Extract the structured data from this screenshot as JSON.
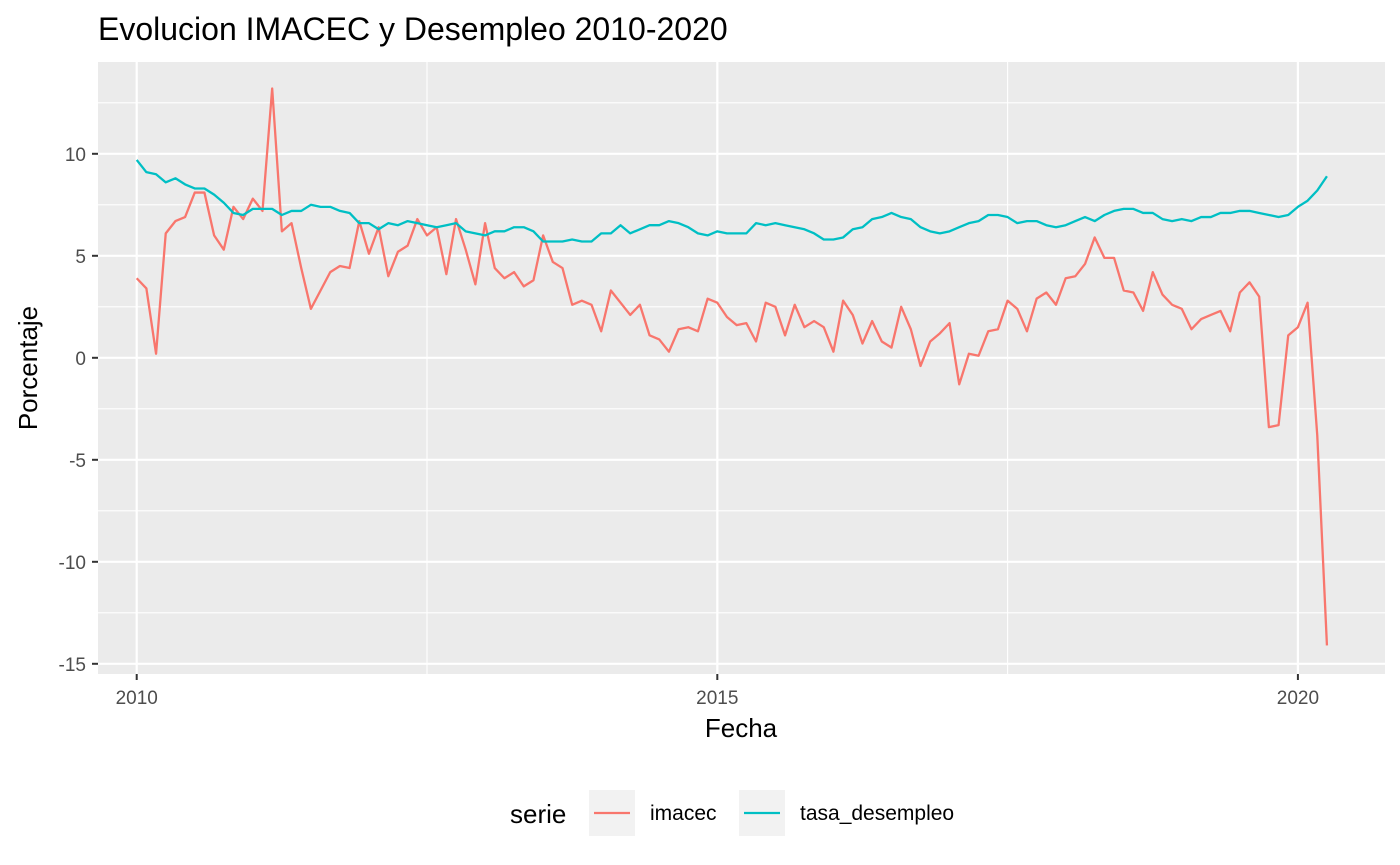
{
  "chart_data": {
    "type": "line",
    "title": "Evolucion IMACEC y Desempleo 2010-2020",
    "xlabel": "Fecha",
    "ylabel": "Porcentaje",
    "x_ticks": [
      "2010",
      "2015",
      "2020"
    ],
    "y_ticks": [
      "-15",
      "-10",
      "-5",
      "0",
      "5",
      "10"
    ],
    "xlim": [
      "2009-09",
      "2020-10"
    ],
    "ylim": [
      -15.5,
      14.5
    ],
    "grid": true,
    "legend": {
      "title": "serie",
      "position": "bottom"
    },
    "series": [
      {
        "name": "imacec",
        "color": "#F8766D",
        "start": "2010-01",
        "frequency": "monthly",
        "values": [
          3.9,
          3.4,
          0.2,
          6.1,
          6.7,
          6.9,
          8.1,
          8.1,
          6.0,
          5.3,
          7.4,
          6.8,
          7.8,
          7.2,
          13.2,
          6.2,
          6.6,
          4.4,
          2.4,
          3.3,
          4.2,
          4.5,
          4.4,
          6.7,
          5.1,
          6.4,
          4.0,
          5.2,
          5.5,
          6.8,
          6.0,
          6.4,
          4.1,
          6.8,
          5.3,
          3.6,
          6.6,
          4.4,
          3.9,
          4.2,
          3.5,
          3.8,
          6.0,
          4.7,
          4.4,
          2.6,
          2.8,
          2.6,
          1.3,
          3.3,
          2.7,
          2.1,
          2.6,
          1.1,
          0.9,
          0.3,
          1.4,
          1.5,
          1.3,
          2.9,
          2.7,
          2.0,
          1.6,
          1.7,
          0.8,
          2.7,
          2.5,
          1.1,
          2.6,
          1.5,
          1.8,
          1.5,
          0.3,
          2.8,
          2.1,
          0.7,
          1.8,
          0.8,
          0.5,
          2.5,
          1.4,
          -0.4,
          0.8,
          1.2,
          1.7,
          -1.3,
          0.2,
          0.1,
          1.3,
          1.4,
          2.8,
          2.4,
          1.3,
          2.9,
          3.2,
          2.6,
          3.9,
          4.0,
          4.6,
          5.9,
          4.9,
          4.9,
          3.3,
          3.2,
          2.3,
          4.2,
          3.1,
          2.6,
          2.4,
          1.4,
          1.9,
          2.1,
          2.3,
          1.3,
          3.2,
          3.7,
          3.0,
          -3.4,
          -3.3,
          1.1,
          1.5,
          2.7,
          -3.8,
          -14.1
        ]
      },
      {
        "name": "tasa_desempleo",
        "color": "#00BFC4",
        "start": "2010-01",
        "frequency": "monthly",
        "values": [
          9.7,
          9.1,
          9.0,
          8.6,
          8.8,
          8.5,
          8.3,
          8.3,
          8.0,
          7.6,
          7.1,
          7.0,
          7.3,
          7.3,
          7.3,
          7.0,
          7.2,
          7.2,
          7.5,
          7.4,
          7.4,
          7.2,
          7.1,
          6.6,
          6.6,
          6.3,
          6.6,
          6.5,
          6.7,
          6.6,
          6.5,
          6.4,
          6.5,
          6.6,
          6.2,
          6.1,
          6.0,
          6.2,
          6.2,
          6.4,
          6.4,
          6.2,
          5.7,
          5.7,
          5.7,
          5.8,
          5.7,
          5.7,
          6.1,
          6.1,
          6.5,
          6.1,
          6.3,
          6.5,
          6.5,
          6.7,
          6.6,
          6.4,
          6.1,
          6.0,
          6.2,
          6.1,
          6.1,
          6.1,
          6.6,
          6.5,
          6.6,
          6.5,
          6.4,
          6.3,
          6.1,
          5.8,
          5.8,
          5.9,
          6.3,
          6.4,
          6.8,
          6.9,
          7.1,
          6.9,
          6.8,
          6.4,
          6.2,
          6.1,
          6.2,
          6.4,
          6.6,
          6.7,
          7.0,
          7.0,
          6.9,
          6.6,
          6.7,
          6.7,
          6.5,
          6.4,
          6.5,
          6.7,
          6.9,
          6.7,
          7.0,
          7.2,
          7.3,
          7.3,
          7.1,
          7.1,
          6.8,
          6.7,
          6.8,
          6.7,
          6.9,
          6.9,
          7.1,
          7.1,
          7.2,
          7.2,
          7.1,
          7.0,
          6.9,
          7.0,
          7.4,
          7.7,
          8.2,
          8.9
        ]
      }
    ]
  }
}
